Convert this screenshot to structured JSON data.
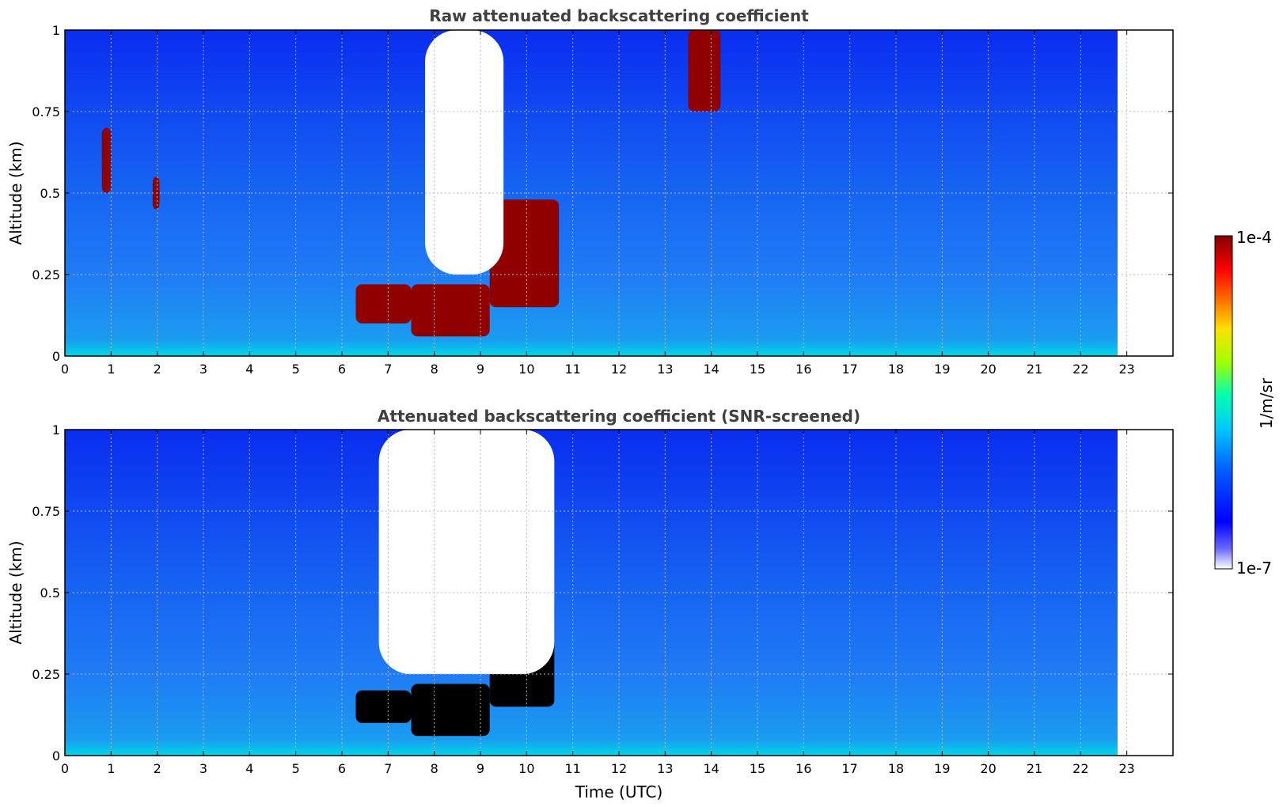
{
  "chart_data": [
    {
      "type": "heatmap",
      "title": "Raw attenuated backscattering coefficient",
      "xlabel": "",
      "ylabel": "Altitude (km)",
      "xlim": [
        0,
        24
      ],
      "ylim": [
        0,
        1
      ],
      "xticks": [
        "0",
        "1",
        "2",
        "3",
        "4",
        "5",
        "6",
        "7",
        "8",
        "9",
        "10",
        "11",
        "12",
        "13",
        "14",
        "15",
        "16",
        "17",
        "18",
        "19",
        "20",
        "21",
        "22",
        "23"
      ],
      "yticks": [
        "0",
        "0.25",
        "0.5",
        "0.75",
        "1"
      ],
      "grid": true,
      "data_end_hour": 22.8,
      "features": [
        {
          "x_range": [
            7.5,
            9.2
          ],
          "y_range": [
            0.06,
            0.22
          ],
          "level": "high"
        },
        {
          "x_range": [
            9.2,
            10.7
          ],
          "y_range": [
            0.15,
            0.48
          ],
          "level": "high"
        },
        {
          "x_range": [
            6.3,
            7.5
          ],
          "y_range": [
            0.1,
            0.22
          ],
          "level": "high"
        },
        {
          "x_range": [
            0.8,
            1.0
          ],
          "y_range": [
            0.5,
            0.7
          ],
          "level": "high"
        },
        {
          "x_range": [
            1.9,
            2.05
          ],
          "y_range": [
            0.45,
            0.55
          ],
          "level": "high"
        },
        {
          "x_range": [
            13.5,
            14.2
          ],
          "y_range": [
            0.75,
            1.0
          ],
          "level": "high"
        },
        {
          "x_range": [
            7.8,
            9.5
          ],
          "y_range": [
            0.25,
            1.0
          ],
          "level": "missing"
        }
      ]
    },
    {
      "type": "heatmap",
      "title": "Attenuated backscattering coefficient (SNR-screened)",
      "xlabel": "Time (UTC)",
      "ylabel": "Altitude (km)",
      "xlim": [
        0,
        24
      ],
      "ylim": [
        0,
        1
      ],
      "xticks": [
        "0",
        "1",
        "2",
        "3",
        "4",
        "5",
        "6",
        "7",
        "8",
        "9",
        "10",
        "11",
        "12",
        "13",
        "14",
        "15",
        "16",
        "17",
        "18",
        "19",
        "20",
        "21",
        "22",
        "23"
      ],
      "yticks": [
        "0",
        "0.25",
        "0.5",
        "0.75",
        "1"
      ],
      "grid": true,
      "data_end_hour": 22.8,
      "features": [
        {
          "x_range": [
            7.5,
            9.2
          ],
          "y_range": [
            0.06,
            0.22
          ],
          "level": "saturated"
        },
        {
          "x_range": [
            9.2,
            10.6
          ],
          "y_range": [
            0.15,
            0.48
          ],
          "level": "saturated"
        },
        {
          "x_range": [
            6.3,
            7.5
          ],
          "y_range": [
            0.1,
            0.2
          ],
          "level": "saturated"
        },
        {
          "x_range": [
            6.8,
            10.6
          ],
          "y_range": [
            0.25,
            1.0
          ],
          "level": "missing"
        }
      ]
    }
  ],
  "colorbar": {
    "label": "1/m/sr",
    "max_label": "1e-4",
    "min_label": "1e-7",
    "colormap": [
      "#ffffff",
      "#0000ff",
      "#00a0ff",
      "#00ffc0",
      "#c0ff00",
      "#ffc000",
      "#ff2000",
      "#800000"
    ]
  }
}
